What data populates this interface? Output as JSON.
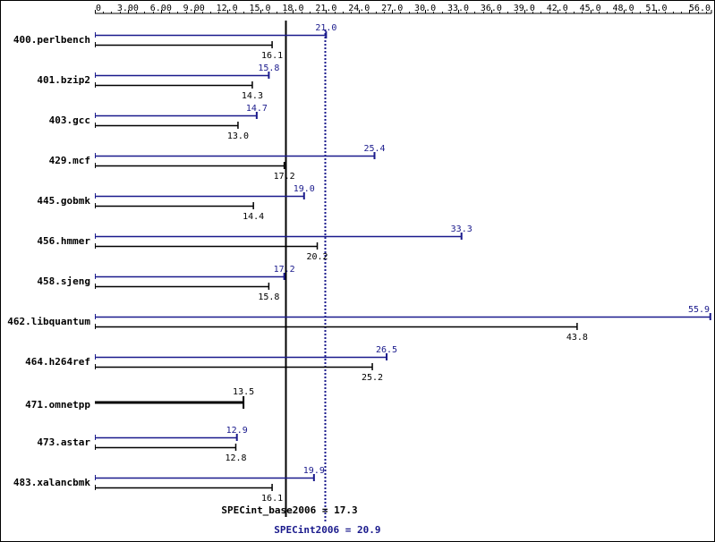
{
  "chart_data": {
    "type": "bar",
    "orientation": "horizontal",
    "title": "",
    "xlabel": "",
    "ylabel": "",
    "xlim": [
      0,
      56.0
    ],
    "x_ticks": [
      "0",
      "3.00",
      "6.00",
      "9.00",
      "12.0",
      "15.0",
      "18.0",
      "21.0",
      "24.0",
      "27.0",
      "30.0",
      "33.0",
      "36.0",
      "39.0",
      "42.0",
      "45.0",
      "48.0",
      "51.0",
      "56.0"
    ],
    "x_axis_position": "top",
    "grid": false,
    "categories": [
      "400.perlbench",
      "401.bzip2",
      "403.gcc",
      "429.mcf",
      "445.gobmk",
      "456.hmmer",
      "458.sjeng",
      "462.libquantum",
      "464.h264ref",
      "471.omnetpp",
      "473.astar",
      "483.xalancbmk"
    ],
    "series": [
      {
        "name": "",
        "color": "#1a1a8c",
        "values": [
          21.0,
          15.8,
          14.7,
          25.4,
          19.0,
          33.3,
          17.2,
          55.9,
          26.5,
          null,
          12.9,
          19.9
        ],
        "labels": [
          "21.0",
          "15.8",
          "14.7",
          "25.4",
          "19.0",
          "33.3",
          "17.2",
          "55.9",
          "26.5",
          "",
          "12.9",
          "19.9"
        ]
      },
      {
        "name": "",
        "color": "#000000",
        "values": [
          16.1,
          14.3,
          13.0,
          17.2,
          14.4,
          20.2,
          15.8,
          43.8,
          25.2,
          13.5,
          12.8,
          16.1
        ],
        "labels": [
          "16.1",
          "14.3",
          "13.0",
          "17.2",
          "14.4",
          "20.2",
          "15.8",
          "43.8",
          "25.2",
          "13.5",
          "12.8",
          "16.1"
        ]
      }
    ],
    "reference_lines": [
      {
        "label": "SPECint_base2006 = 17.3",
        "value": 17.3,
        "color": "#000000",
        "style": "solid"
      },
      {
        "label": "SPECint2006 = 20.9",
        "value": 20.9,
        "color": "#1a1a8c",
        "style": "dotted"
      }
    ]
  }
}
